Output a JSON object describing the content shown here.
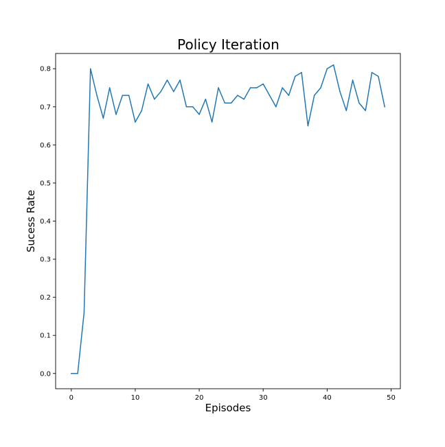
{
  "chart_data": {
    "type": "line",
    "title": "Policy Iteration",
    "xlabel": "Episodes",
    "ylabel": "Sucess Rate",
    "xlim": [
      -2.45,
      51.45
    ],
    "ylim": [
      -0.04,
      0.84
    ],
    "xticks": [
      0,
      10,
      20,
      30,
      40,
      50
    ],
    "xtick_labels": [
      "0",
      "10",
      "20",
      "30",
      "40",
      "50"
    ],
    "yticks": [
      0.0,
      0.1,
      0.2,
      0.3,
      0.4,
      0.5,
      0.6,
      0.7,
      0.8
    ],
    "ytick_labels": [
      "0.0",
      "0.1",
      "0.2",
      "0.3",
      "0.4",
      "0.5",
      "0.6",
      "0.7",
      "0.8"
    ],
    "grid": false,
    "series": [
      {
        "color": "#1f77b4",
        "x": [
          0,
          1,
          2,
          3,
          4,
          5,
          6,
          7,
          8,
          9,
          10,
          11,
          12,
          13,
          14,
          15,
          16,
          17,
          18,
          19,
          20,
          21,
          22,
          23,
          24,
          25,
          26,
          27,
          28,
          29,
          30,
          31,
          32,
          33,
          34,
          35,
          36,
          37,
          38,
          39,
          40,
          41,
          42,
          43,
          44,
          45,
          46,
          47,
          48,
          49
        ],
        "values": [
          0.0,
          0.0,
          0.16,
          0.8,
          0.73,
          0.67,
          0.75,
          0.68,
          0.73,
          0.73,
          0.66,
          0.69,
          0.76,
          0.72,
          0.74,
          0.77,
          0.74,
          0.77,
          0.7,
          0.7,
          0.68,
          0.72,
          0.66,
          0.75,
          0.71,
          0.71,
          0.73,
          0.72,
          0.75,
          0.75,
          0.76,
          0.73,
          0.7,
          0.75,
          0.73,
          0.78,
          0.79,
          0.65,
          0.73,
          0.75,
          0.8,
          0.81,
          0.74,
          0.69,
          0.77,
          0.71,
          0.69,
          0.79,
          0.78,
          0.7
        ]
      }
    ]
  }
}
